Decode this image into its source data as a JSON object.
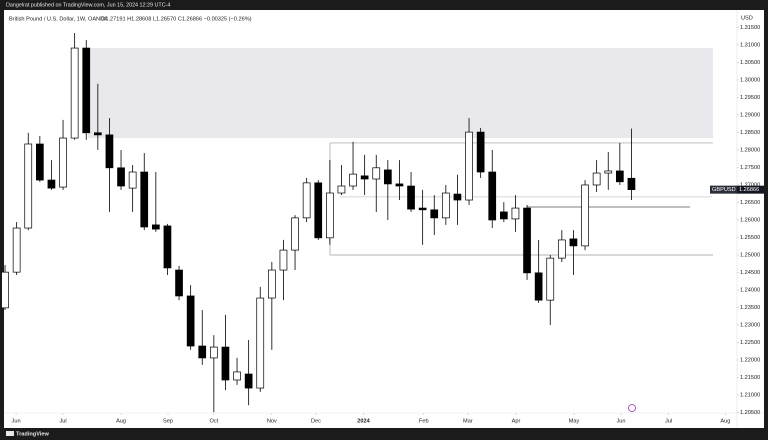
{
  "chart_data": {
    "type": "candlestick",
    "published": "Dangelrat published on TradingView.com, Jun 15, 2024 12:29 UTC-4",
    "title": "British Pound / U.S. Dollar, 1W, OANDA",
    "ohlc_text": "O1.27191 H1.28608 L1.26570 C1.26866 −0.00325 (−0.26%)",
    "currency": "USD",
    "symbol": "GBPUSD",
    "brand": "TradingView",
    "up_color": "#ffffff",
    "down_color": "#000000",
    "border_color": "#000000",
    "x": [
      0,
      1,
      2,
      3,
      4,
      5,
      6,
      7,
      8,
      9,
      10,
      11,
      12,
      13,
      14,
      15,
      16,
      17,
      18,
      19,
      20,
      21,
      22,
      23,
      24,
      25,
      26,
      27,
      28,
      29,
      30,
      31,
      32,
      33,
      34,
      35,
      36,
      37,
      38,
      39,
      40,
      41,
      42,
      43,
      44,
      45,
      46,
      47,
      48,
      49,
      50,
      51,
      52,
      53,
      54
    ],
    "open": [
      1.2349,
      1.2451,
      1.2577,
      1.2817,
      1.2714,
      1.2694,
      1.2834,
      1.3091,
      1.2849,
      1.2843,
      1.2749,
      1.2691,
      1.2737,
      1.2586,
      1.2583,
      1.2457,
      1.2383,
      1.224,
      1.2206,
      1.2237,
      1.2143,
      1.216,
      1.212,
      1.2377,
      1.2457,
      1.2514,
      1.2606,
      1.2706,
      1.2549,
      1.2677,
      1.2697,
      1.2726,
      1.2717,
      1.2743,
      1.2703,
      1.2697,
      1.2634,
      1.2629,
      1.2606,
      1.2674,
      1.2657,
      1.2851,
      1.2737,
      1.2623,
      1.2603,
      1.2634,
      1.2449,
      1.2371,
      1.2491,
      1.2546,
      1.2526,
      1.27,
      1.2734,
      1.274,
      1.27191
    ],
    "high": [
      1.2471,
      1.2594,
      1.2849,
      1.284,
      1.2771,
      1.2886,
      1.3134,
      1.3114,
      1.2989,
      1.2891,
      1.28,
      1.2757,
      1.2791,
      1.2737,
      1.2589,
      1.2469,
      1.2414,
      1.2343,
      1.2271,
      1.2329,
      1.2206,
      1.2257,
      1.2409,
      1.248,
      1.2543,
      1.2614,
      1.272,
      1.2714,
      1.2771,
      1.2757,
      1.2823,
      1.2786,
      1.2786,
      1.2771,
      1.2771,
      1.2737,
      1.2686,
      1.2671,
      1.27,
      1.2729,
      1.2891,
      1.2863,
      1.28,
      1.2651,
      1.2671,
      1.2643,
      1.2543,
      1.25,
      1.2571,
      1.2571,
      1.2714,
      1.2771,
      1.2794,
      1.282,
      1.28608
    ],
    "low": [
      1.2343,
      1.2443,
      1.2571,
      1.2709,
      1.2686,
      1.2686,
      1.2829,
      1.2829,
      1.28,
      1.2623,
      1.2686,
      1.2623,
      1.2571,
      1.2566,
      1.2443,
      1.2371,
      1.2229,
      1.2186,
      1.2051,
      1.2114,
      1.2129,
      1.2071,
      1.2109,
      1.2229,
      1.2371,
      1.2457,
      1.2594,
      1.2543,
      1.2529,
      1.2671,
      1.2686,
      1.2671,
      1.2623,
      1.26,
      1.2657,
      1.2623,
      1.2529,
      1.2557,
      1.2586,
      1.2586,
      1.2643,
      1.272,
      1.2577,
      1.2594,
      1.2566,
      1.2429,
      1.2363,
      1.23,
      1.248,
      1.2443,
      1.2514,
      1.268,
      1.2686,
      1.27,
      1.2657
    ],
    "close": [
      1.2451,
      1.2577,
      1.2817,
      1.2714,
      1.2691,
      1.2834,
      1.3091,
      1.2849,
      1.2843,
      1.2749,
      1.2697,
      1.2737,
      1.258,
      1.2574,
      1.2463,
      1.2383,
      1.224,
      1.2206,
      1.2237,
      1.2143,
      1.2166,
      1.212,
      1.2377,
      1.2457,
      1.2514,
      1.2606,
      1.2706,
      1.2549,
      1.2677,
      1.2697,
      1.2731,
      1.2717,
      1.2749,
      1.2703,
      1.2697,
      1.2631,
      1.2629,
      1.2606,
      1.2677,
      1.2657,
      1.2851,
      1.2737,
      1.26,
      1.2603,
      1.2634,
      1.2449,
      1.2371,
      1.2491,
      1.2543,
      1.2526,
      1.27,
      1.2734,
      1.274,
      1.2709,
      1.26866
    ],
    "zone": {
      "high": 1.3091,
      "low": 1.2834
    },
    "levels": [
      1.282,
      1.2666,
      1.2637,
      1.25
    ],
    "xlim": [
      -0.09,
      63.1
    ],
    "xticks": [
      {
        "value": 0.95,
        "label": "Jun"
      },
      {
        "value": 5.0,
        "label": "Jul"
      },
      {
        "value": 10.0,
        "label": "Aug"
      },
      {
        "value": 14.05,
        "label": "Sep"
      },
      {
        "value": 18.0,
        "label": "Oct"
      },
      {
        "value": 23.0,
        "label": "Nov"
      },
      {
        "value": 26.8,
        "label": "Dec"
      },
      {
        "value": 30.9,
        "label": "2024"
      },
      {
        "value": 36.1,
        "label": "Feb"
      },
      {
        "value": 39.9,
        "label": "Mar"
      },
      {
        "value": 44.05,
        "label": "Apr"
      },
      {
        "value": 49.05,
        "label": "May"
      },
      {
        "value": 53.1,
        "label": "Jun"
      },
      {
        "value": 57.2,
        "label": "Jul"
      },
      {
        "value": 62.1,
        "label": "Aug"
      }
    ],
    "ylim": [
      1.2043,
      1.3194
    ],
    "yticks": [
      {
        "value": 1.205,
        "label": "1.20500"
      },
      {
        "value": 1.21,
        "label": "1.21000"
      },
      {
        "value": 1.215,
        "label": "1.21500"
      },
      {
        "value": 1.22,
        "label": "1.22000"
      },
      {
        "value": 1.225,
        "label": "1.22500"
      },
      {
        "value": 1.23,
        "label": "1.23000"
      },
      {
        "value": 1.235,
        "label": "1.23500"
      },
      {
        "value": 1.24,
        "label": "1.24000"
      },
      {
        "value": 1.245,
        "label": "1.24500"
      },
      {
        "value": 1.25,
        "label": "1.25000"
      },
      {
        "value": 1.255,
        "label": "1.25500"
      },
      {
        "value": 1.26,
        "label": "1.26000"
      },
      {
        "value": 1.265,
        "label": "1.26500"
      },
      {
        "value": 1.27,
        "label": "1.27000"
      },
      {
        "value": 1.275,
        "label": "1.27500"
      },
      {
        "value": 1.28,
        "label": "1.28000"
      },
      {
        "value": 1.285,
        "label": "1.28500"
      },
      {
        "value": 1.29,
        "label": "1.29000"
      },
      {
        "value": 1.295,
        "label": "1.29500"
      },
      {
        "value": 1.3,
        "label": "1.30000"
      },
      {
        "value": 1.305,
        "label": "1.30500"
      },
      {
        "value": 1.31,
        "label": "1.31000"
      },
      {
        "value": 1.315,
        "label": "1.31500"
      }
    ],
    "grid": false
  }
}
